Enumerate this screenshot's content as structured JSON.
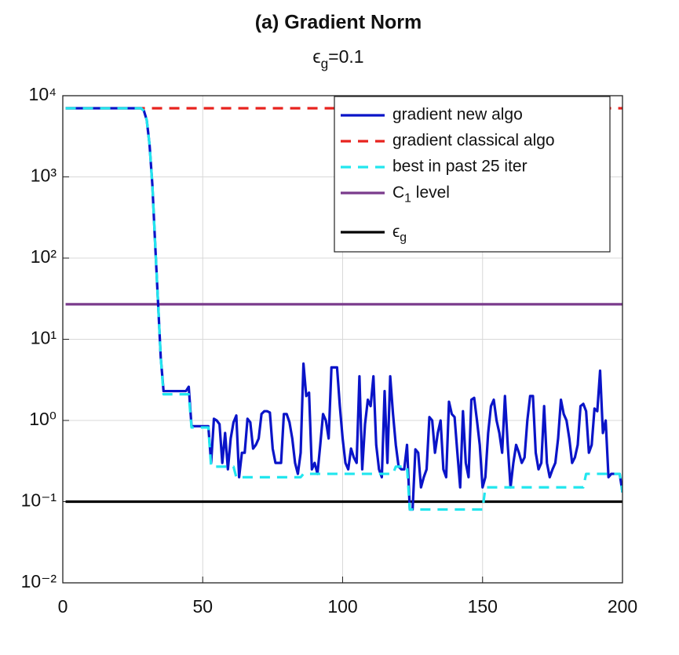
{
  "chart_data": {
    "type": "line",
    "title": "(a) Gradient Norm",
    "subtitle": "ϵg=0.1",
    "xlim": [
      0,
      200
    ],
    "xticks": [
      0,
      50,
      100,
      150,
      200
    ],
    "ylim": [
      0.01,
      10000
    ],
    "yticks": [
      {
        "value": 0.01,
        "label": "10⁻²"
      },
      {
        "value": 0.1,
        "label": "10⁻¹"
      },
      {
        "value": 1,
        "label": "10⁰"
      },
      {
        "value": 10,
        "label": "10¹"
      },
      {
        "value": 100,
        "label": "10²"
      },
      {
        "value": 1000,
        "label": "10³"
      },
      {
        "value": 10000,
        "label": "10⁴"
      }
    ],
    "log_y": true,
    "grid": true,
    "legend": "upper right",
    "series": [
      {
        "name": "gradient new algo",
        "color": "#0a14c8",
        "dash": false,
        "x": [
          1,
          28,
          29,
          30,
          31,
          32,
          33,
          34,
          35,
          36,
          37,
          38,
          39,
          40,
          41,
          42,
          43,
          44,
          45,
          46,
          47,
          48,
          49,
          50,
          51,
          52,
          53,
          54,
          55,
          56,
          57,
          58,
          59,
          60,
          61,
          62,
          63,
          64,
          65,
          66,
          67,
          68,
          69,
          70,
          71,
          72,
          73,
          74,
          75,
          76,
          77,
          78,
          79,
          80,
          81,
          82,
          83,
          84,
          85,
          86,
          87,
          88,
          89,
          90,
          91,
          92,
          93,
          94,
          95,
          96,
          97,
          98,
          99,
          100,
          101,
          102,
          103,
          104,
          105,
          106,
          107,
          108,
          109,
          110,
          111,
          112,
          113,
          114,
          115,
          116,
          117,
          118,
          119,
          120,
          121,
          122,
          123,
          124,
          125,
          126,
          127,
          128,
          129,
          130,
          131,
          132,
          133,
          134,
          135,
          136,
          137,
          138,
          139,
          140,
          141,
          142,
          143,
          144,
          145,
          146,
          147,
          148,
          149,
          150,
          151,
          152,
          153,
          154,
          155,
          156,
          157,
          158,
          159,
          160,
          161,
          162,
          163,
          164,
          165,
          166,
          167,
          168,
          169,
          170,
          171,
          172,
          173,
          174,
          175,
          176,
          177,
          178,
          179,
          180,
          181,
          182,
          183,
          184,
          185,
          186,
          187,
          188,
          189,
          190,
          191,
          192,
          193,
          194,
          195,
          196,
          197,
          198,
          199,
          200
        ],
        "values": [
          7000,
          7000,
          6500,
          5000,
          2500,
          800,
          150,
          30,
          6,
          2.3,
          2.3,
          2.3,
          2.3,
          2.3,
          2.3,
          2.3,
          2.3,
          2.3,
          2.6,
          0.85,
          0.85,
          0.85,
          0.85,
          0.85,
          0.85,
          0.85,
          0.3,
          1.05,
          1.0,
          0.9,
          0.3,
          0.7,
          0.25,
          0.6,
          0.95,
          1.15,
          0.2,
          0.4,
          0.4,
          1.05,
          0.95,
          0.45,
          0.5,
          0.6,
          1.2,
          1.3,
          1.3,
          1.25,
          0.45,
          0.3,
          0.3,
          0.3,
          1.2,
          1.2,
          0.95,
          0.6,
          0.3,
          0.22,
          0.4,
          5.0,
          2.0,
          2.2,
          0.25,
          0.3,
          0.22,
          0.5,
          1.2,
          1.0,
          0.6,
          4.5,
          4.5,
          4.5,
          1.5,
          0.6,
          0.3,
          0.25,
          0.45,
          0.35,
          0.3,
          3.5,
          0.25,
          0.9,
          1.8,
          1.5,
          3.5,
          0.5,
          0.25,
          0.2,
          2.3,
          0.3,
          3.5,
          1.2,
          0.5,
          0.27,
          0.25,
          0.25,
          0.5,
          0.08,
          0.08,
          0.44,
          0.4,
          0.15,
          0.2,
          0.25,
          1.1,
          1.0,
          0.4,
          0.7,
          1.0,
          0.25,
          0.2,
          1.7,
          1.2,
          1.1,
          0.4,
          0.15,
          1.3,
          0.3,
          0.2,
          1.8,
          1.9,
          1.0,
          0.5,
          0.15,
          0.2,
          0.7,
          1.5,
          1.8,
          1.0,
          0.7,
          0.4,
          2.0,
          0.5,
          0.15,
          0.3,
          0.5,
          0.4,
          0.3,
          0.35,
          1.0,
          2.0,
          2.0,
          0.4,
          0.25,
          0.3,
          1.5,
          0.3,
          0.2,
          0.25,
          0.3,
          0.6,
          1.8,
          1.2,
          1.0,
          0.6,
          0.3,
          0.35,
          0.5,
          1.5,
          1.6,
          1.3,
          0.4,
          0.5,
          1.4,
          1.3,
          4.1,
          0.7,
          1.0,
          0.2,
          0.22,
          0.22,
          0.22,
          0.22,
          0.13
        ]
      },
      {
        "name": "gradient classical algo",
        "color": "#e8231e",
        "dash": true,
        "x": [
          1,
          200
        ],
        "values": [
          7000,
          7000
        ]
      },
      {
        "name": "best in past 25 iter",
        "color": "#22e6ee",
        "dash": true,
        "x": [
          1,
          28,
          29,
          30,
          31,
          32,
          33,
          34,
          35,
          36,
          45,
          46,
          52,
          53,
          61,
          62,
          85,
          86,
          118,
          119,
          123,
          124,
          150,
          151,
          186,
          187,
          199,
          200
        ],
        "values": [
          7000,
          7000,
          6500,
          5000,
          2500,
          800,
          150,
          30,
          6,
          2.1,
          2.1,
          0.82,
          0.82,
          0.27,
          0.27,
          0.2,
          0.2,
          0.22,
          0.22,
          0.27,
          0.27,
          0.08,
          0.08,
          0.15,
          0.15,
          0.22,
          0.22,
          0.13
        ]
      },
      {
        "name": "C1 level",
        "color": "#7a3b8c",
        "dash": false,
        "x": [
          1,
          200
        ],
        "values": [
          27,
          27
        ]
      },
      {
        "name": "ϵg",
        "color": "#000000",
        "dash": false,
        "x": [
          1,
          200
        ],
        "values": [
          0.1,
          0.1
        ]
      }
    ]
  }
}
